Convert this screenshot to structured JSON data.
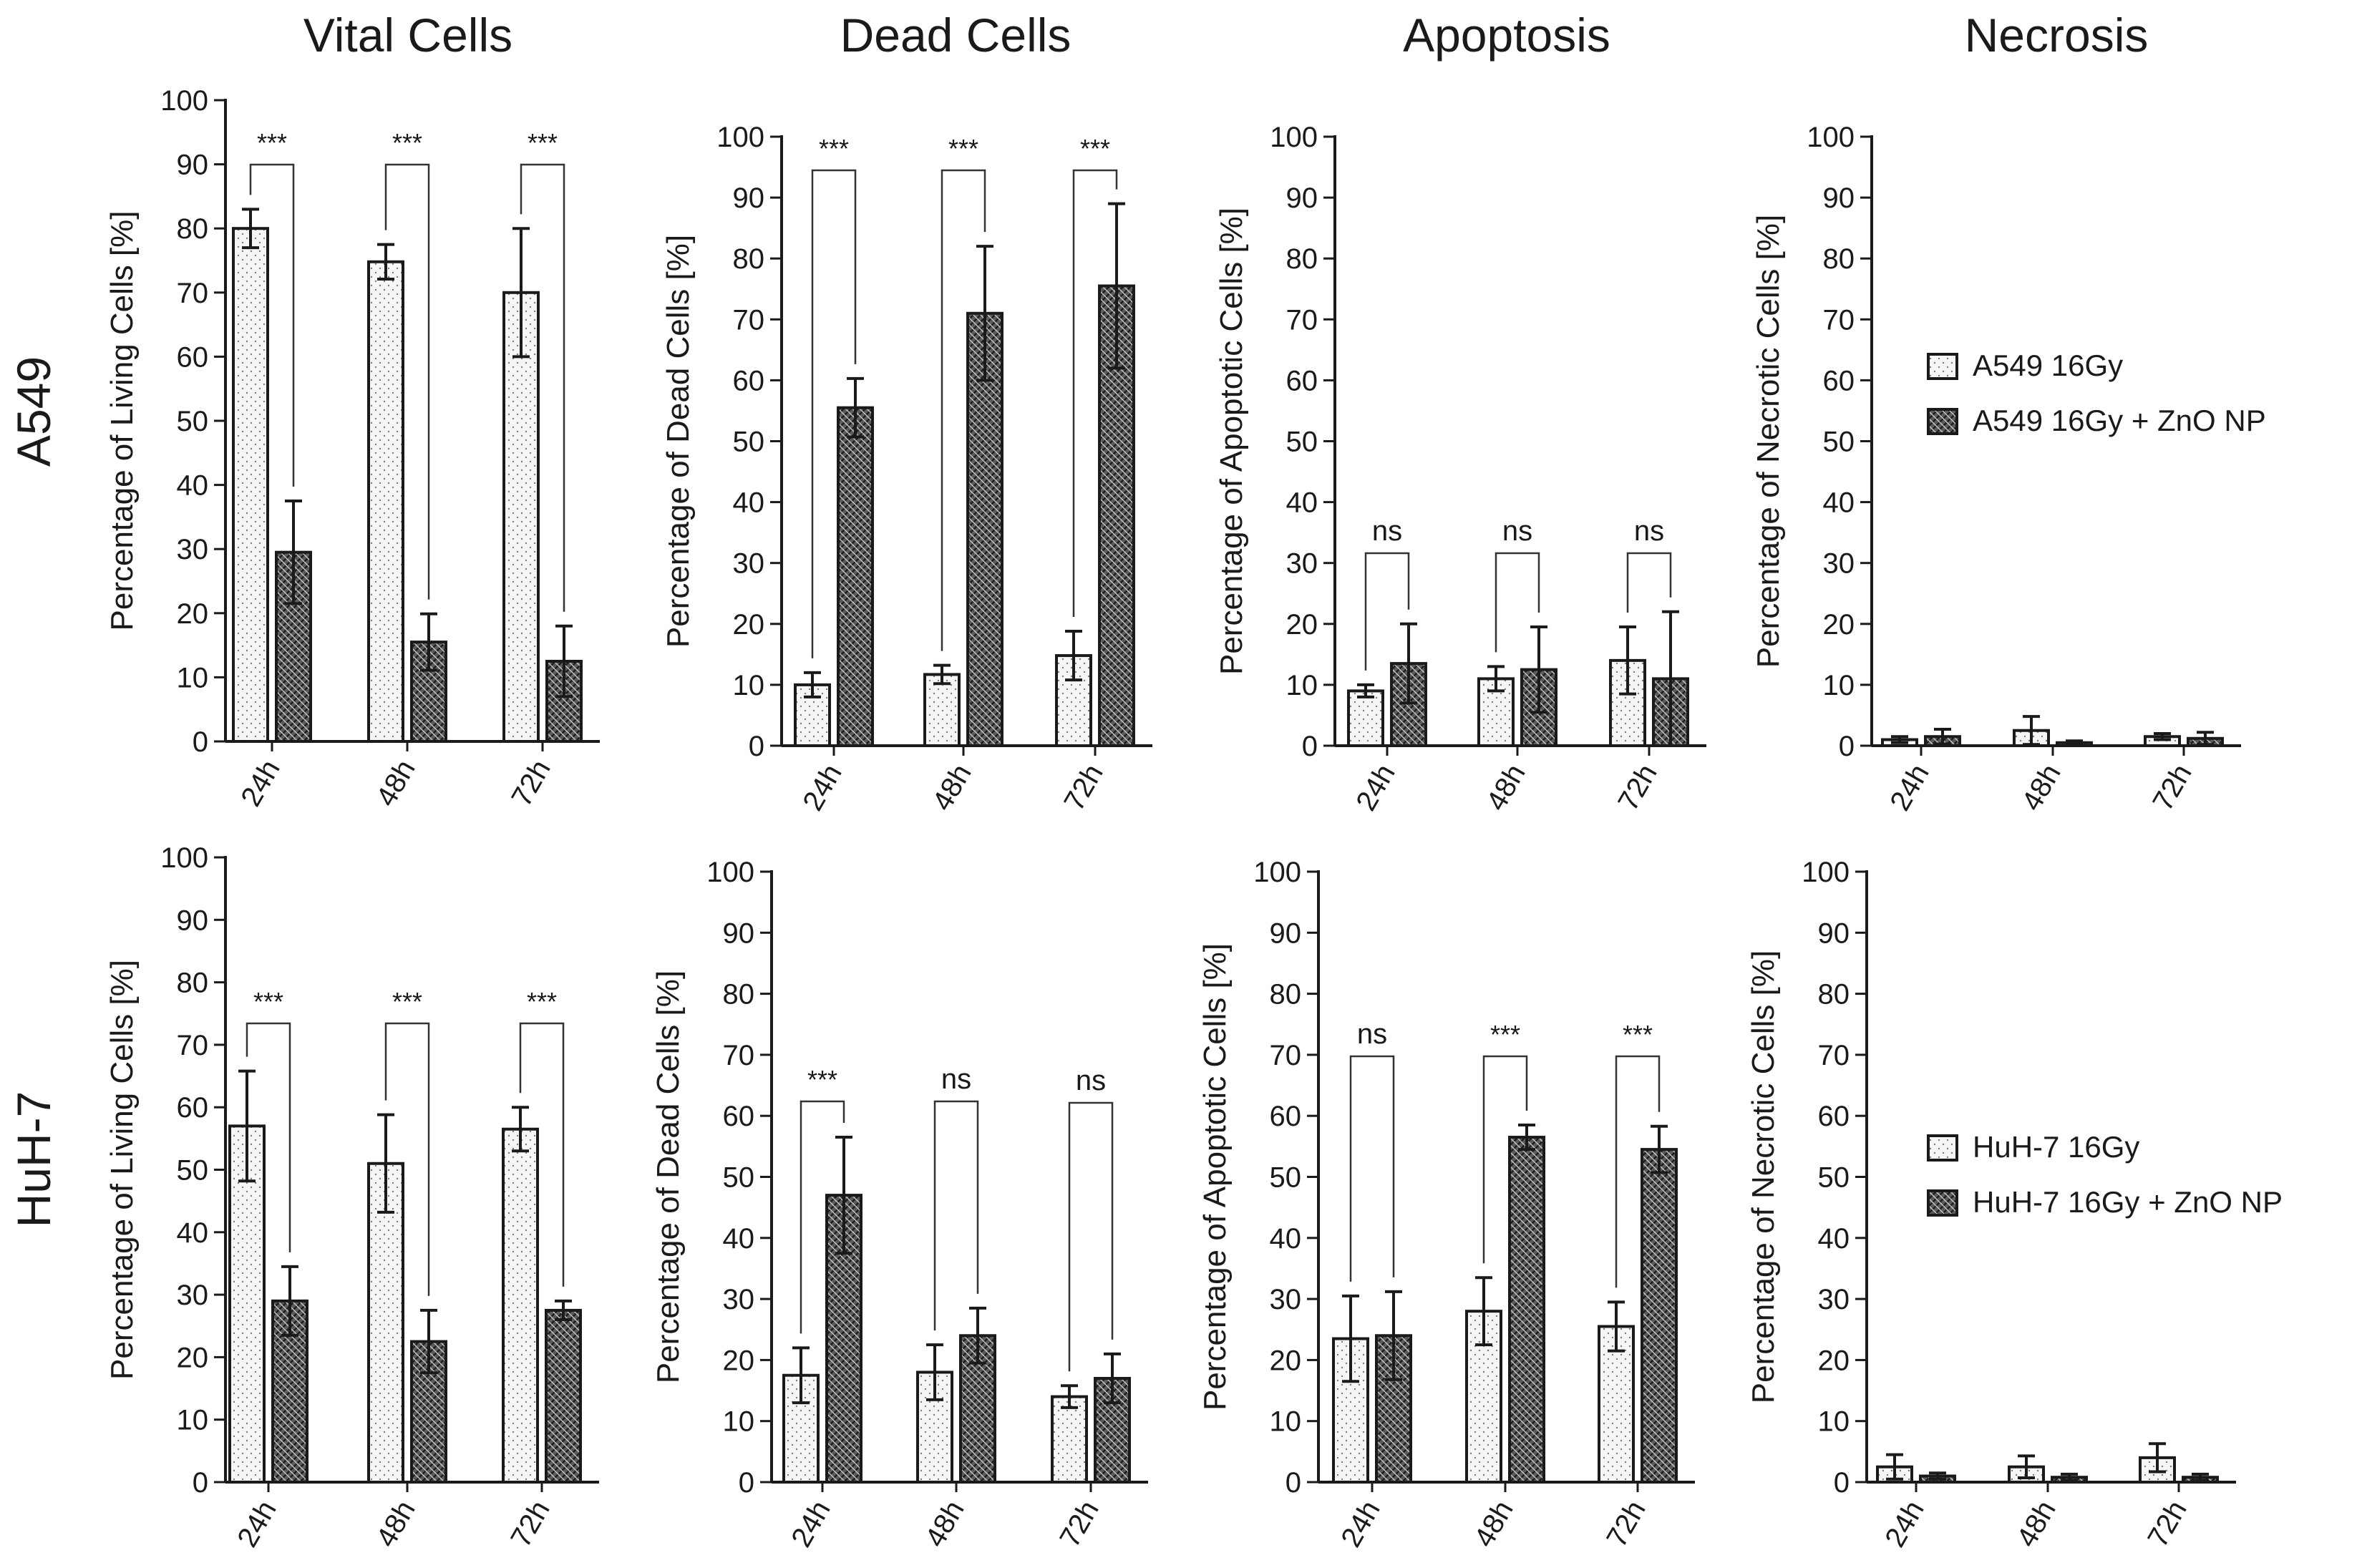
{
  "columns": [
    "Vital Cells",
    "Dead Cells",
    "Apoptosis",
    "Necrosis"
  ],
  "rows": [
    "A549",
    "HuH-7"
  ],
  "chart_data": [
    {
      "type": "bar",
      "id": "a549-vital",
      "title": "Vital Cells",
      "row_label": "A549",
      "ylabel": "Percentage of Living Cells [%]",
      "ylim": [
        0,
        100
      ],
      "yticks": [
        0,
        10,
        20,
        30,
        40,
        50,
        60,
        70,
        80,
        90,
        100
      ],
      "categories": [
        "24h",
        "48h",
        "72h"
      ],
      "series": [
        {
          "name": "A549 16Gy",
          "values": [
            80,
            74.8,
            70
          ],
          "errors": [
            3,
            2.7,
            10
          ]
        },
        {
          "name": "A549 16Gy + ZnO NP",
          "values": [
            29.5,
            15.5,
            12.5
          ],
          "errors": [
            8,
            4.4,
            5.5
          ]
        }
      ],
      "significance": [
        "***",
        "***",
        "***"
      ]
    },
    {
      "type": "bar",
      "id": "a549-dead",
      "title": "Dead Cells",
      "ylabel": "Percentage of Dead Cells [%]",
      "ylim": [
        0,
        100
      ],
      "yticks": [
        0,
        10,
        20,
        30,
        40,
        50,
        60,
        70,
        80,
        90,
        100
      ],
      "categories": [
        "24h",
        "48h",
        "72h"
      ],
      "series": [
        {
          "name": "A549 16Gy",
          "values": [
            10,
            11.7,
            14.8
          ],
          "errors": [
            2,
            1.5,
            4
          ]
        },
        {
          "name": "A549 16Gy + ZnO NP",
          "values": [
            55.5,
            71,
            75.5
          ],
          "errors": [
            4.8,
            11,
            13.5
          ]
        }
      ],
      "significance": [
        "***",
        "***",
        "***"
      ]
    },
    {
      "type": "bar",
      "id": "a549-apoptosis",
      "title": "Apoptosis",
      "ylabel": "Percentage of Apoptotic Cells [%]",
      "ylim": [
        0,
        100
      ],
      "yticks": [
        0,
        10,
        20,
        30,
        40,
        50,
        60,
        70,
        80,
        90,
        100
      ],
      "categories": [
        "24h",
        "48h",
        "72h"
      ],
      "series": [
        {
          "name": "A549 16Gy",
          "values": [
            9,
            11,
            14
          ],
          "errors": [
            1,
            2,
            5.5
          ]
        },
        {
          "name": "A549 16Gy + ZnO NP",
          "values": [
            13.5,
            12.5,
            11
          ],
          "errors": [
            6.5,
            7,
            11
          ]
        }
      ],
      "significance": [
        "ns",
        "ns",
        "ns"
      ]
    },
    {
      "type": "bar",
      "id": "a549-necrosis",
      "title": "Necrosis",
      "ylabel": "Percentage of Necrotic Cells [%]",
      "ylim": [
        0,
        100
      ],
      "yticks": [
        0,
        10,
        20,
        30,
        40,
        50,
        60,
        70,
        80,
        90,
        100
      ],
      "categories": [
        "24h",
        "48h",
        "72h"
      ],
      "series": [
        {
          "name": "A549 16Gy",
          "values": [
            1,
            2.5,
            1.5
          ],
          "errors": [
            0.5,
            2.3,
            0.5
          ]
        },
        {
          "name": "A549 16Gy + ZnO NP",
          "values": [
            1.5,
            0.5,
            1.2
          ],
          "errors": [
            1.2,
            0.3,
            1
          ]
        }
      ],
      "significance": [],
      "legend": [
        "A549 16Gy",
        "A549 16Gy + ZnO NP"
      ]
    },
    {
      "type": "bar",
      "id": "huh7-vital",
      "title": "",
      "row_label": "HuH-7",
      "ylabel": "Percentage of Living Cells [%]",
      "ylim": [
        0,
        100
      ],
      "yticks": [
        0,
        10,
        20,
        30,
        40,
        50,
        60,
        70,
        80,
        90,
        100
      ],
      "categories": [
        "24h",
        "48h",
        "72h"
      ],
      "series": [
        {
          "name": "HuH-7 16Gy",
          "values": [
            57,
            51,
            56.5
          ],
          "errors": [
            8.8,
            7.8,
            3.5
          ]
        },
        {
          "name": "HuH-7 16Gy + ZnO NP",
          "values": [
            29,
            22.5,
            27.5
          ],
          "errors": [
            5.5,
            5,
            1.5
          ]
        }
      ],
      "significance": [
        "***",
        "***",
        "***"
      ]
    },
    {
      "type": "bar",
      "id": "huh7-dead",
      "title": "",
      "ylabel": "Percentage of Dead Cells [%]",
      "ylim": [
        0,
        100
      ],
      "yticks": [
        0,
        10,
        20,
        30,
        40,
        50,
        60,
        70,
        80,
        90,
        100
      ],
      "categories": [
        "24h",
        "48h",
        "72h"
      ],
      "series": [
        {
          "name": "HuH-7 16Gy",
          "values": [
            17.5,
            18,
            14
          ],
          "errors": [
            4.5,
            4.5,
            1.8
          ]
        },
        {
          "name": "HuH-7 16Gy + ZnO NP",
          "values": [
            47,
            24,
            17
          ],
          "errors": [
            9.5,
            4.5,
            4
          ]
        }
      ],
      "significance": [
        "***",
        "ns",
        "ns"
      ]
    },
    {
      "type": "bar",
      "id": "huh7-apoptosis",
      "title": "",
      "ylabel": "Percentage of Apoptotic Cells [%]",
      "ylim": [
        0,
        100
      ],
      "yticks": [
        0,
        10,
        20,
        30,
        40,
        50,
        60,
        70,
        80,
        90,
        100
      ],
      "categories": [
        "24h",
        "48h",
        "72h"
      ],
      "series": [
        {
          "name": "HuH-7 16Gy",
          "values": [
            23.5,
            28,
            25.5
          ],
          "errors": [
            7,
            5.5,
            4
          ]
        },
        {
          "name": "HuH-7 16Gy + ZnO NP",
          "values": [
            24,
            56.5,
            54.5
          ],
          "errors": [
            7.2,
            2,
            3.8
          ]
        }
      ],
      "significance": [
        "ns",
        "***",
        "***"
      ]
    },
    {
      "type": "bar",
      "id": "huh7-necrosis",
      "title": "",
      "ylabel": "Percentage of Necrotic Cells [%]",
      "ylim": [
        0,
        100
      ],
      "yticks": [
        0,
        10,
        20,
        30,
        40,
        50,
        60,
        70,
        80,
        90,
        100
      ],
      "categories": [
        "24h",
        "48h",
        "72h"
      ],
      "series": [
        {
          "name": "HuH-7 16Gy",
          "values": [
            2.5,
            2.5,
            4
          ],
          "errors": [
            2,
            1.8,
            2.3
          ]
        },
        {
          "name": "HuH-7 16Gy + ZnO NP",
          "values": [
            1,
            0.8,
            0.8
          ],
          "errors": [
            0.5,
            0.5,
            0.5
          ]
        }
      ],
      "significance": [],
      "legend": [
        "HuH-7 16Gy",
        "HuH-7 16Gy + ZnO NP"
      ]
    }
  ]
}
